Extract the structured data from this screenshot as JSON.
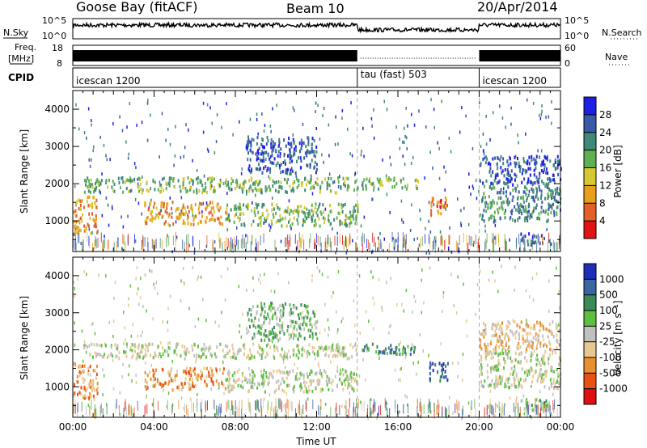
{
  "header": {
    "station": "Goose Bay (fitACF)",
    "beam": "Beam 10",
    "date": "20/Apr/2014"
  },
  "status_panels": {
    "nsky_label": "N.Sky",
    "nsky_ticks": [
      "10^5",
      "10^0"
    ],
    "nsearch_label": "N.Search",
    "nsearch_ticks": [
      "10^5",
      "10^0"
    ],
    "freq_label_1": "Freq.",
    "freq_label_2": "[MHz]",
    "freq_ticks": [
      "18",
      "8"
    ],
    "nave_label": "Nave",
    "nave_ticks": [
      "60",
      "0"
    ],
    "cpid_label": "CPID",
    "cpid_segments": [
      {
        "name": "icescan 1200",
        "start_hour": 0,
        "end_hour": 14
      },
      {
        "name": "tau (fast) 503",
        "start_hour": 14,
        "end_hour": 20
      },
      {
        "name": "icescan 1200",
        "start_hour": 20,
        "end_hour": 24
      }
    ]
  },
  "chart_data": [
    {
      "type": "heatmap",
      "name": "power",
      "ylabel": "Slant Range [km]",
      "ylim": [
        180,
        4500
      ],
      "yticks": [
        1000,
        2000,
        3000,
        4000
      ],
      "xlim": [
        0,
        24
      ],
      "colorbar": {
        "label": "Power [dB]",
        "ticks": [
          "4",
          "8",
          "12",
          "16",
          "20",
          "24",
          "28"
        ],
        "colors": [
          "#1e1ee6",
          "#3a5aa8",
          "#3f8a76",
          "#5fb050",
          "#d6c830",
          "#e8a01c",
          "#e4602a",
          "#e01414"
        ]
      },
      "regions": [
        {
          "t0": 0.0,
          "t1": 1.2,
          "r0": 700,
          "r1": 1700,
          "level": 5
        },
        {
          "t0": 0.5,
          "t1": 14.0,
          "r0": 1800,
          "r1": 2200,
          "level": 3
        },
        {
          "t0": 3.5,
          "t1": 7.5,
          "r0": 950,
          "r1": 1550,
          "level": 5
        },
        {
          "t0": 7.5,
          "t1": 14.0,
          "r0": 900,
          "r1": 1500,
          "level": 3
        },
        {
          "t0": 8.5,
          "t1": 12.0,
          "r0": 2300,
          "r1": 3300,
          "level": 1
        },
        {
          "t0": 14.2,
          "t1": 17.0,
          "r0": 1900,
          "r1": 2200,
          "level": 3
        },
        {
          "t0": 17.5,
          "t1": 18.5,
          "r0": 1200,
          "r1": 1700,
          "level": 6
        },
        {
          "t0": 20.0,
          "t1": 24.0,
          "r0": 1000,
          "r1": 2000,
          "level": 2
        },
        {
          "t0": 20.0,
          "t1": 24.0,
          "r0": 2000,
          "r1": 2800,
          "level": 1
        },
        {
          "t0": 22.0,
          "t1": 23.5,
          "r0": 400,
          "r1": 700,
          "level": 1
        }
      ]
    },
    {
      "type": "heatmap",
      "name": "velocity",
      "ylabel": "Slant Range [km]",
      "xlabel": "Time UT",
      "ylim": [
        180,
        4500
      ],
      "yticks": [
        1000,
        2000,
        3000,
        4000
      ],
      "xlim": [
        0,
        24
      ],
      "xticks": [
        "00:00",
        "04:00",
        "08:00",
        "12:00",
        "16:00",
        "20:00",
        "00:00"
      ],
      "colorbar": {
        "label": "Velocity [m s⁻¹]",
        "ticks": [
          "1000",
          "500",
          "100",
          "25",
          "-25",
          "-100",
          "-500",
          "-1000"
        ],
        "colors": [
          "#1e2eb8",
          "#3a66a0",
          "#3a8a5a",
          "#5ec040",
          "#c0c0c0",
          "#e8c890",
          "#e89030",
          "#e85014",
          "#e01010"
        ]
      },
      "regions": [
        {
          "t0": 0.0,
          "t1": 1.2,
          "r0": 700,
          "r1": 1700,
          "level": 6
        },
        {
          "t0": 0.5,
          "t1": 14.0,
          "r0": 1800,
          "r1": 2200,
          "level": 4
        },
        {
          "t0": 3.5,
          "t1": 7.5,
          "r0": 950,
          "r1": 1550,
          "level": 6
        },
        {
          "t0": 7.5,
          "t1": 14.0,
          "r0": 900,
          "r1": 1500,
          "level": 4
        },
        {
          "t0": 8.5,
          "t1": 12.0,
          "r0": 2300,
          "r1": 3300,
          "level": 3
        },
        {
          "t0": 14.2,
          "t1": 17.0,
          "r0": 1900,
          "r1": 2200,
          "level": 2
        },
        {
          "t0": 17.5,
          "t1": 18.5,
          "r0": 1200,
          "r1": 1700,
          "level": 1
        },
        {
          "t0": 20.0,
          "t1": 24.0,
          "r0": 1000,
          "r1": 2000,
          "level": 4
        },
        {
          "t0": 20.0,
          "t1": 24.0,
          "r0": 2000,
          "r1": 2800,
          "level": 5
        },
        {
          "t0": 22.0,
          "t1": 23.5,
          "r0": 400,
          "r1": 700,
          "level": 3
        }
      ]
    }
  ]
}
